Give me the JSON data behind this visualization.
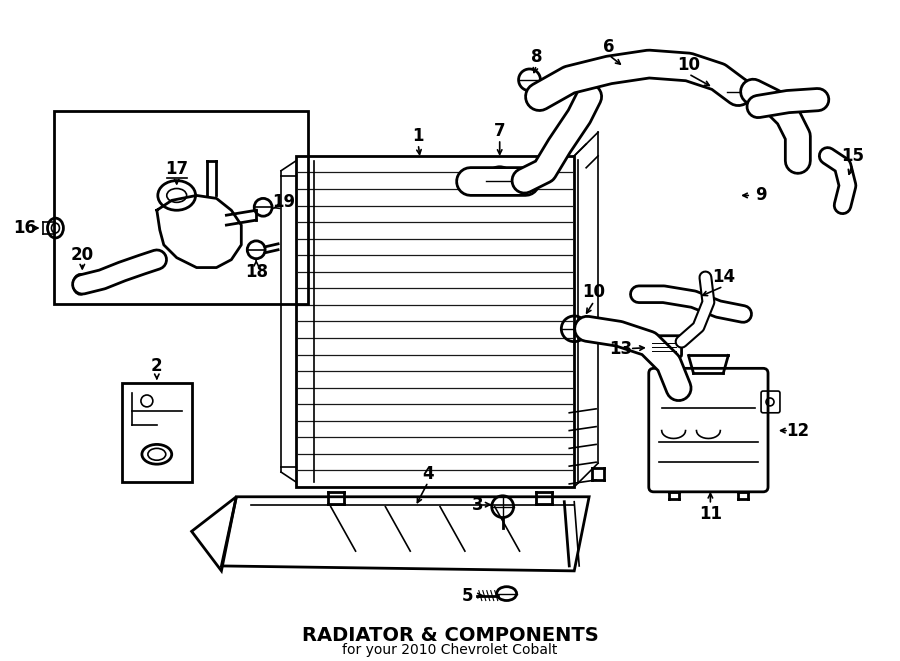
{
  "title": "RADIATOR & COMPONENTS",
  "subtitle": "for your 2010 Chevrolet Cobalt",
  "bg": "#ffffff",
  "lc": "#000000",
  "fig_w": 9.0,
  "fig_h": 6.61,
  "dpi": 100
}
